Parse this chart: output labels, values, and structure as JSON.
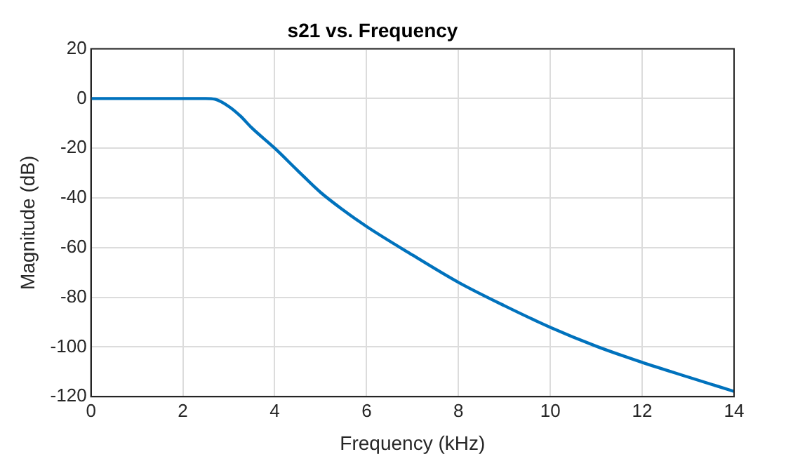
{
  "chart_data": {
    "type": "line",
    "title": "s21 vs. Frequency",
    "xlabel": "Frequency (kHz)",
    "ylabel": "Magnitude (dB)",
    "x": [
      0,
      1,
      2,
      2.5,
      2.7,
      3,
      3.25,
      3.5,
      4,
      4.5,
      5,
      5.5,
      6,
      7,
      8,
      9,
      10,
      11,
      12,
      13,
      14
    ],
    "series": [
      {
        "color": "#0072bd",
        "values": [
          0,
          0,
          0,
          0,
          -0.3,
          -3.2,
          -7,
          -11.8,
          -20,
          -29,
          -37.8,
          -45,
          -51.5,
          -63,
          -74,
          -83.4,
          -92.1,
          -99.7,
          -106.2,
          -112.1,
          -117.9
        ]
      }
    ],
    "xlim": [
      0,
      14
    ],
    "xticks": [
      0,
      2,
      4,
      6,
      8,
      10,
      12,
      14
    ],
    "ylim": [
      -120,
      20
    ],
    "yticks": [
      -120,
      -100,
      -80,
      -60,
      -40,
      -20,
      0,
      20
    ],
    "grid": true,
    "legend": false,
    "marker": "none",
    "line_style": "solid"
  }
}
